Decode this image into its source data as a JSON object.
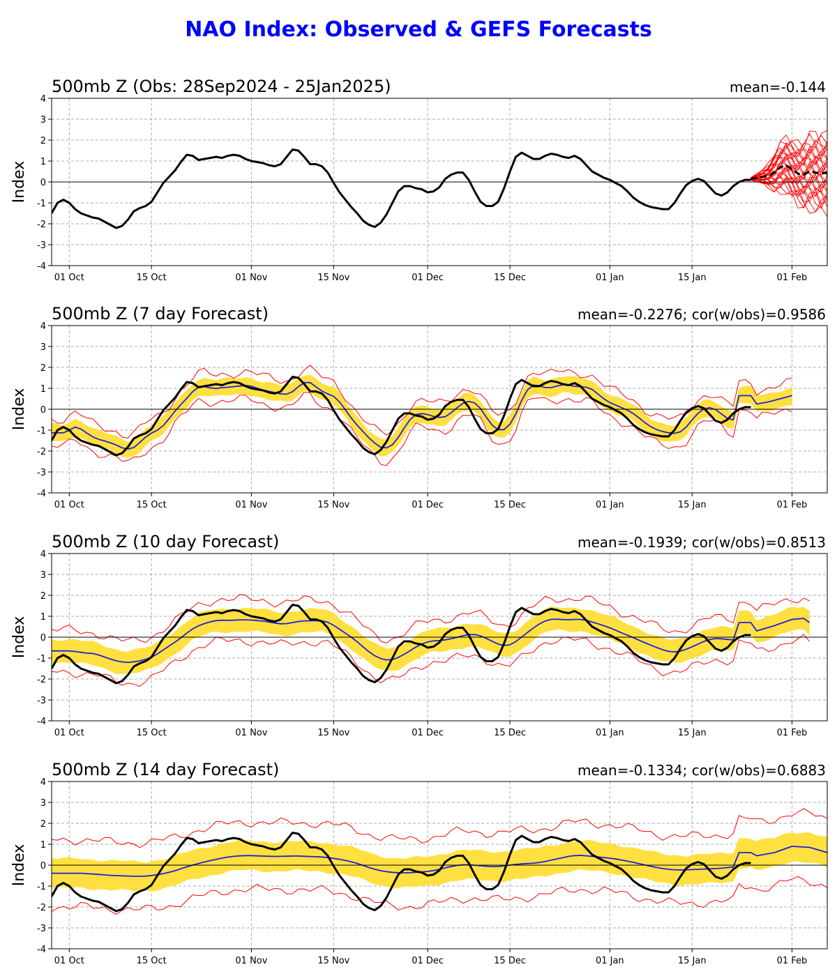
{
  "figure": {
    "title": "NAO Index: Observed & GEFS Forecasts",
    "colors": {
      "title": "#0000ff",
      "observed": "#000000",
      "ensemble_mean": "#1f1fd6",
      "spread_band": "#ffe040",
      "extremes": "#ff0000",
      "grid": "#aaaaaa"
    }
  },
  "chart_data": [
    {
      "type": "line",
      "title": "500mb Z (Obs: 28Sep2024 - 25Jan2025)",
      "stat": "mean=-0.144",
      "ylabel": "Index",
      "ylim": [
        -4,
        4
      ],
      "yticks": [
        -4,
        -3,
        -2,
        -1,
        0,
        1,
        2,
        3,
        4
      ],
      "xlim_days": [
        0,
        132
      ],
      "xticks": [
        {
          "label": "01 Oct",
          "day": 3
        },
        {
          "label": "15 Oct",
          "day": 17
        },
        {
          "label": "01 Nov",
          "day": 34
        },
        {
          "label": "15 Nov",
          "day": 48
        },
        {
          "label": "01 Dec",
          "day": 64
        },
        {
          "label": "15 Dec",
          "day": 78
        },
        {
          "label": "01 Jan",
          "day": 95
        },
        {
          "label": "15 Jan",
          "day": 109
        },
        {
          "label": "01 Feb",
          "day": 126
        }
      ],
      "observed_key": true,
      "forecast_plume": {
        "start_day": 119,
        "end_day": 132,
        "member_count": 30,
        "mean": [
          [
            119,
            0.15
          ],
          [
            120,
            0.2
          ],
          [
            121,
            0.25
          ],
          [
            122,
            0.3
          ],
          [
            123,
            0.45
          ],
          [
            124,
            0.7
          ],
          [
            125,
            0.8
          ],
          [
            126,
            0.6
          ],
          [
            127,
            0.4
          ],
          [
            128,
            0.35
          ],
          [
            129,
            0.5
          ],
          [
            130,
            0.45
          ],
          [
            131,
            0.4
          ],
          [
            132,
            0.45
          ]
        ],
        "spread": [
          [
            119,
            0.05
          ],
          [
            120,
            0.15
          ],
          [
            121,
            0.3
          ],
          [
            122,
            0.5
          ],
          [
            123,
            0.8
          ],
          [
            124,
            1.0
          ],
          [
            125,
            1.1
          ],
          [
            126,
            1.2
          ],
          [
            127,
            1.3
          ],
          [
            128,
            1.4
          ],
          [
            129,
            1.5
          ],
          [
            130,
            1.55
          ],
          [
            131,
            1.6
          ],
          [
            132,
            1.65
          ]
        ]
      }
    },
    {
      "type": "line",
      "title": "500mb Z (7 day Forecast)",
      "stat": "mean=-0.2276; cor(w/obs)=0.9586",
      "ylabel": "Index",
      "ylim": [
        -4,
        4
      ],
      "yticks": [
        -4,
        -3,
        -2,
        -1,
        0,
        1,
        2,
        3,
        4
      ],
      "xlim_days": [
        0,
        132
      ],
      "xticks": [
        {
          "label": "01 Oct",
          "day": 3
        },
        {
          "label": "15 Oct",
          "day": 17
        },
        {
          "label": "01 Nov",
          "day": 34
        },
        {
          "label": "15 Nov",
          "day": 48
        },
        {
          "label": "01 Dec",
          "day": 64
        },
        {
          "label": "15 Dec",
          "day": 78
        },
        {
          "label": "01 Jan",
          "day": 95
        },
        {
          "label": "15 Jan",
          "day": 109
        },
        {
          "label": "01 Feb",
          "day": 126
        }
      ],
      "observed_key": true,
      "forecast": {
        "lag": 2,
        "smooth": 1,
        "bias": 0.0,
        "amp": 0.9,
        "band": 0.4,
        "wide": 0.65,
        "extend_to": 126,
        "tail": [
          [
            120,
            0.25
          ],
          [
            122,
            0.35
          ],
          [
            124,
            0.5
          ],
          [
            126,
            0.65
          ]
        ]
      }
    },
    {
      "type": "line",
      "title": "500mb Z (10 day Forecast)",
      "stat": "mean=-0.1939; cor(w/obs)=0.8513",
      "ylabel": "Index",
      "ylim": [
        -4,
        4
      ],
      "yticks": [
        -4,
        -3,
        -2,
        -1,
        0,
        1,
        2,
        3,
        4
      ],
      "xlim_days": [
        0,
        132
      ],
      "xticks": [
        {
          "label": "01 Oct",
          "day": 3
        },
        {
          "label": "15 Oct",
          "day": 17
        },
        {
          "label": "01 Nov",
          "day": 34
        },
        {
          "label": "15 Nov",
          "day": 48
        },
        {
          "label": "01 Dec",
          "day": 64
        },
        {
          "label": "15 Dec",
          "day": 78
        },
        {
          "label": "01 Jan",
          "day": 95
        },
        {
          "label": "15 Jan",
          "day": 109
        },
        {
          "label": "01 Feb",
          "day": 126
        }
      ],
      "observed_key": true,
      "forecast": {
        "lag": 3,
        "smooth": 3,
        "bias": 0.05,
        "amp": 0.65,
        "band": 0.55,
        "wide": 1.0,
        "extend_to": 129,
        "tail": [
          [
            120,
            0.3
          ],
          [
            123,
            0.55
          ],
          [
            126,
            0.85
          ],
          [
            128,
            0.9
          ],
          [
            129,
            0.7
          ]
        ]
      }
    },
    {
      "type": "line",
      "title": "500mb Z (14 day Forecast)",
      "stat": "mean=-0.1334; cor(w/obs)=0.6883",
      "ylabel": "Index",
      "ylim": [
        -4,
        4
      ],
      "yticks": [
        -4,
        -3,
        -2,
        -1,
        0,
        1,
        2,
        3,
        4
      ],
      "xlim_days": [
        0,
        132
      ],
      "xticks": [
        {
          "label": "01 Oct",
          "day": 3
        },
        {
          "label": "15 Oct",
          "day": 17
        },
        {
          "label": "01 Nov",
          "day": 34
        },
        {
          "label": "15 Nov",
          "day": 48
        },
        {
          "label": "01 Dec",
          "day": 64
        },
        {
          "label": "15 Dec",
          "day": 78
        },
        {
          "label": "01 Jan",
          "day": 95
        },
        {
          "label": "15 Jan",
          "day": 109
        },
        {
          "label": "01 Feb",
          "day": 126
        }
      ],
      "observed_key": true,
      "forecast": {
        "lag": 5,
        "smooth": 6,
        "bias": 0.05,
        "amp": 0.35,
        "band": 0.7,
        "wide": 1.6,
        "extend_to": 132,
        "tail": [
          [
            120,
            0.45
          ],
          [
            123,
            0.6
          ],
          [
            126,
            0.9
          ],
          [
            129,
            0.85
          ],
          [
            132,
            0.6
          ]
        ]
      }
    }
  ],
  "observed_series": {
    "x_days": [
      0,
      1,
      2,
      3,
      4,
      5,
      6,
      7,
      8,
      9,
      10,
      11,
      12,
      13,
      14,
      15,
      16,
      17,
      18,
      19,
      20,
      21,
      22,
      23,
      24,
      25,
      26,
      27,
      28,
      29,
      30,
      31,
      32,
      33,
      34,
      35,
      36,
      37,
      38,
      39,
      40,
      41,
      42,
      43,
      44,
      45,
      46,
      47,
      48,
      49,
      50,
      51,
      52,
      53,
      54,
      55,
      56,
      57,
      58,
      59,
      60,
      61,
      62,
      63,
      64,
      65,
      66,
      67,
      68,
      69,
      70,
      71,
      72,
      73,
      74,
      75,
      76,
      77,
      78,
      79,
      80,
      81,
      82,
      83,
      84,
      85,
      86,
      87,
      88,
      89,
      90,
      91,
      92,
      93,
      94,
      95,
      96,
      97,
      98,
      99,
      100,
      101,
      102,
      103,
      104,
      105,
      106,
      107,
      108,
      109,
      110,
      111,
      112,
      113,
      114,
      115,
      116,
      117,
      118,
      119
    ],
    "values": [
      -1.5,
      -1.0,
      -0.85,
      -1.0,
      -1.3,
      -1.5,
      -1.6,
      -1.7,
      -1.75,
      -1.9,
      -2.05,
      -2.2,
      -2.1,
      -1.8,
      -1.4,
      -1.25,
      -1.15,
      -0.95,
      -0.5,
      -0.05,
      0.25,
      0.55,
      0.95,
      1.3,
      1.25,
      1.05,
      1.1,
      1.15,
      1.2,
      1.15,
      1.25,
      1.3,
      1.25,
      1.1,
      1.0,
      0.95,
      0.9,
      0.8,
      0.75,
      0.85,
      1.2,
      1.55,
      1.5,
      1.2,
      0.85,
      0.85,
      0.75,
      0.45,
      -0.05,
      -0.5,
      -0.85,
      -1.2,
      -1.5,
      -1.85,
      -2.05,
      -2.15,
      -1.95,
      -1.55,
      -1.0,
      -0.45,
      -0.2,
      -0.2,
      -0.3,
      -0.35,
      -0.5,
      -0.45,
      -0.25,
      0.15,
      0.35,
      0.45,
      0.45,
      0.1,
      -0.45,
      -0.95,
      -1.15,
      -1.15,
      -0.95,
      -0.3,
      0.5,
      1.2,
      1.4,
      1.25,
      1.1,
      1.1,
      1.25,
      1.35,
      1.3,
      1.2,
      1.15,
      1.25,
      1.1,
      0.8,
      0.5,
      0.35,
      0.2,
      0.1,
      -0.05,
      -0.2,
      -0.45,
      -0.75,
      -0.95,
      -1.1,
      -1.2,
      -1.25,
      -1.3,
      -1.3,
      -1.0,
      -0.55,
      -0.15,
      0.05,
      0.15,
      0.05,
      -0.25,
      -0.55,
      -0.65,
      -0.5,
      -0.2,
      0.0,
      0.1,
      0.1
    ]
  }
}
